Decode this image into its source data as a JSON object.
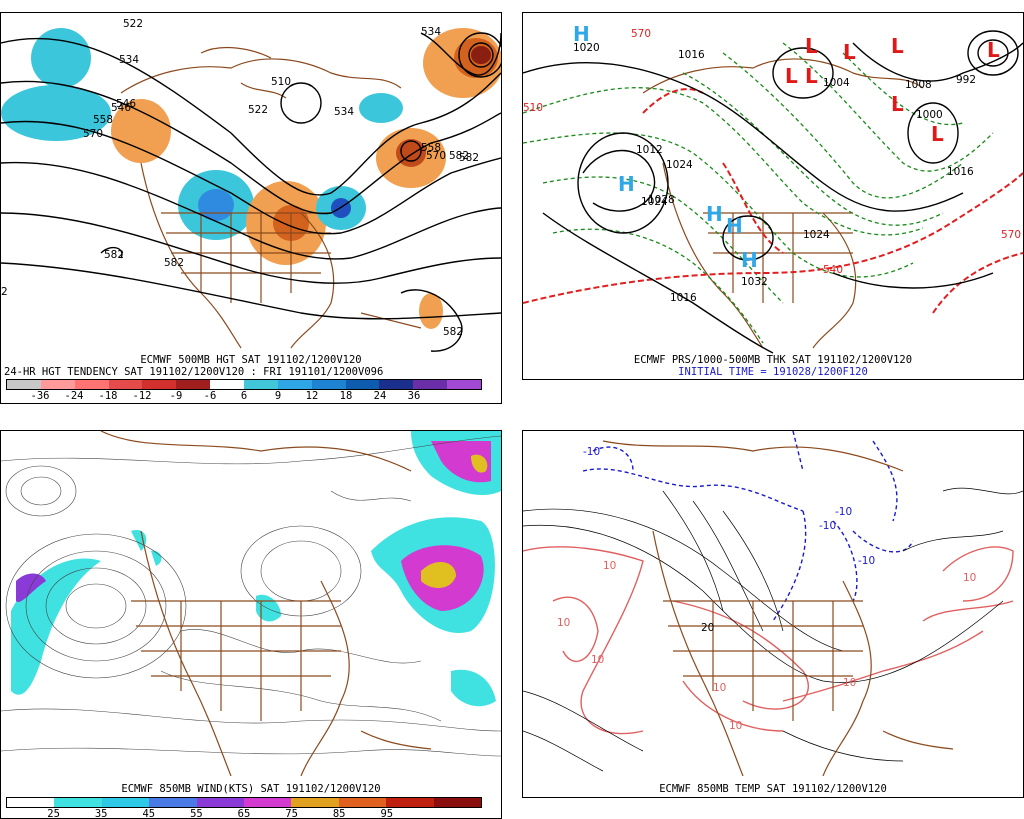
{
  "panels": {
    "p500": {
      "title": "ECMWF 500MB HGT SAT 191102/1200V120",
      "subtitle": "24-HR HGT TENDENCY SAT 191102/1200V120 : FRI 191101/1200V096",
      "contour_labels": [
        "522",
        "534",
        "546",
        "558",
        "570",
        "582",
        "534",
        "558",
        "570",
        "582",
        "510",
        "522",
        "534",
        "582",
        "582",
        "582",
        "2",
        "546"
      ],
      "colorbar": {
        "ticks": [
          "-36",
          "-24",
          "-18",
          "-12",
          "-9",
          "-6",
          "6",
          "9",
          "12",
          "18",
          "24",
          "36"
        ],
        "colors": [
          "#c8c8c8",
          "#ff9a9a",
          "#ff7373",
          "#e64b4b",
          "#d22f2f",
          "#a01e1e",
          "#ffffff",
          "#42c7d8",
          "#2fa6e6",
          "#1f83d4",
          "#0e5cb0",
          "#1b2f8c",
          "#6a2fa8",
          "#a24ad6"
        ]
      }
    },
    "pthk": {
      "title": "ECMWF PRS/1000-500MB THK SAT 191102/1200V120",
      "subtitle": "INITIAL TIME = 191028/1200F120",
      "highs": [
        "H",
        "H",
        "H",
        "H",
        "H"
      ],
      "lows": [
        "L",
        "L",
        "L",
        "L",
        "L",
        "L",
        "L",
        "L"
      ],
      "pressure_labels": [
        "1020",
        "1016",
        "1024",
        "1028",
        "1032",
        "1016",
        "1004",
        "1008",
        "992",
        "1000",
        "1016",
        "1012",
        "1024",
        "1024",
        "570",
        "510",
        "540",
        "570"
      ]
    },
    "p850w": {
      "title": "ECMWF 850MB WIND(KTS) SAT 191102/1200V120",
      "colorbar": {
        "ticks": [
          "25",
          "35",
          "45",
          "55",
          "65",
          "75",
          "85",
          "95"
        ],
        "colors": [
          "#ffffff",
          "#3fe2e0",
          "#2fc9e8",
          "#4a7ae6",
          "#8a3ad6",
          "#d23ad0",
          "#e0a020",
          "#e06020",
          "#c02010",
          "#8a0e0e"
        ]
      }
    },
    "p850t": {
      "title": "ECMWF 850MB TEMP SAT 191102/1200V120",
      "temp_labels": [
        "-10",
        "-10",
        "-10",
        "10",
        "10",
        "10",
        "10",
        "10",
        "-10",
        "20",
        "10",
        "10"
      ]
    }
  },
  "colors": {
    "contour": "#000000",
    "coast": "#8b4a1e",
    "warm": "#e07020",
    "cold": "#2ab0e0",
    "thickness_warm": "#e02020",
    "thickness_green": "#1a8a1a",
    "high": "#30a8e8",
    "low": "#e01818",
    "temp_pos": "#e06060",
    "temp_neg": "#1a1acc"
  }
}
